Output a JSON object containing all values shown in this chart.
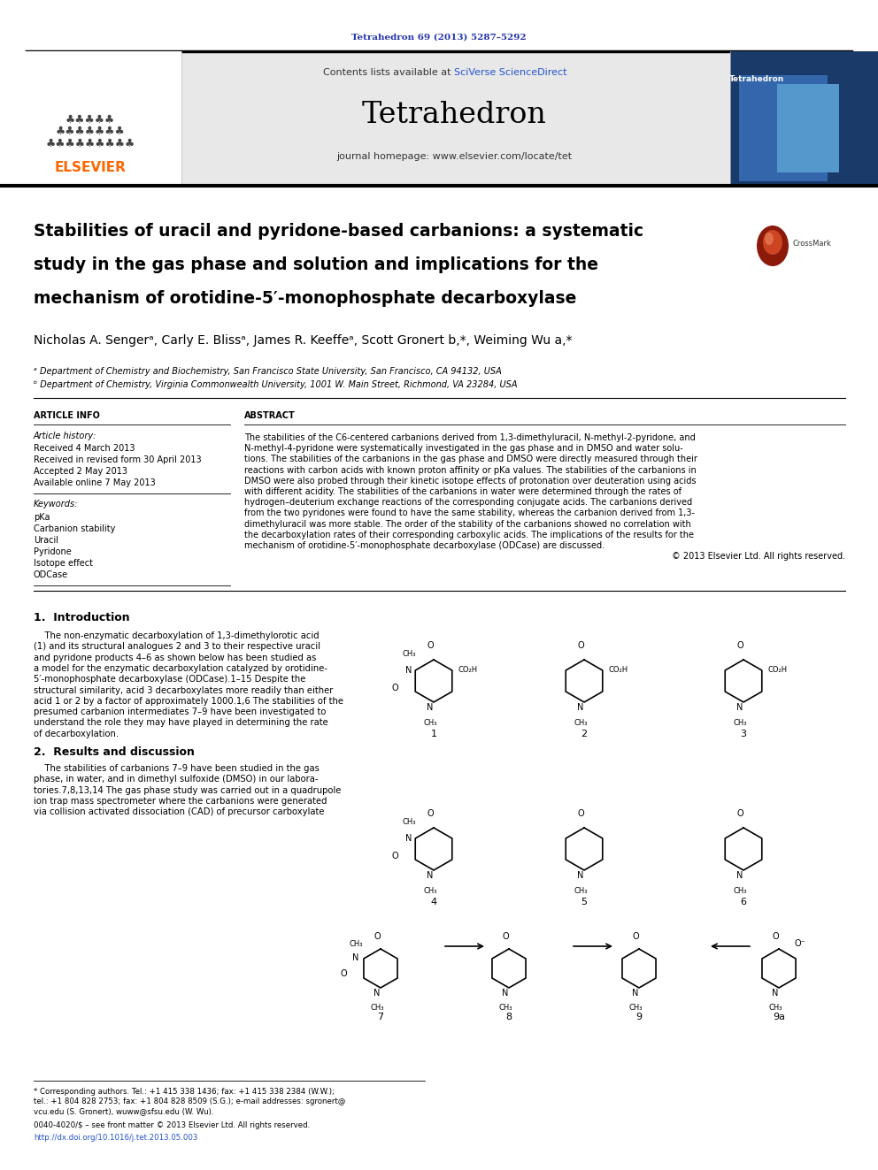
{
  "background_color": "#ffffff",
  "page_width": 9.92,
  "page_height": 13.23,
  "dpi": 100,
  "header_bg_color": "#e8e8e8",
  "journal_cite_text": "Tetrahedron 69 (2013) 5287–5292",
  "journal_cite_color": "#2233aa",
  "contents_text": "Contents lists available at ",
  "sciverse_text": "SciVerse ScienceDirect",
  "sciverse_color": "#2255cc",
  "journal_name": "Tetrahedron",
  "journal_homepage_text": "journal homepage: www.elsevier.com/locate/tet",
  "title_line1": "Stabilities of uracil and pyridone-based carbanions: a systematic",
  "title_line2": "study in the gas phase and solution and implications for the",
  "title_line3": "mechanism of orotidine-5′-monophosphate decarboxylase",
  "authors_text": "Nicholas A. Sengerᵃ, Carly E. Blissᵃ, James R. Keeffeᵃ, Scott Gronert b,*, Weiming Wu a,*",
  "affil_a": "ᵃ Department of Chemistry and Biochemistry, San Francisco State University, San Francisco, CA 94132, USA",
  "affil_b": "ᵇ Department of Chemistry, Virginia Commonwealth University, 1001 W. Main Street, Richmond, VA 23284, USA",
  "section_article_info": "ARTICLE INFO",
  "article_history_label": "Article history:",
  "received": "Received 4 March 2013",
  "revised": "Received in revised form 30 April 2013",
  "accepted": "Accepted 2 May 2013",
  "available": "Available online 7 May 2013",
  "keywords_label": "Keywords:",
  "keywords": [
    "pKa",
    "Carbanion stability",
    "Uracil",
    "Pyridone",
    "Isotope effect",
    "ODCase"
  ],
  "section_abstract": "ABSTRACT",
  "abstract_lines": [
    "The stabilities of the C6-centered carbanions derived from 1,3-dimethyluracil, N-methyl-2-pyridone, and",
    "N-methyl-4-pyridone were systematically investigated in the gas phase and in DMSO and water solu-",
    "tions. The stabilities of the carbanions in the gas phase and DMSO were directly measured through their",
    "reactions with carbon acids with known proton affinity or pKa values. The stabilities of the carbanions in",
    "DMSO were also probed through their kinetic isotope effects of protonation over deuteration using acids",
    "with different acidity. The stabilities of the carbanions in water were determined through the rates of",
    "hydrogen–deuterium exchange reactions of the corresponding conjugate acids. The carbanions derived",
    "from the two pyridones were found to have the same stability, whereas the carbanion derived from 1,3-",
    "dimethyluracil was more stable. The order of the stability of the carbanions showed no correlation with",
    "the decarboxylation rates of their corresponding carboxylic acids. The implications of the results for the",
    "mechanism of orotidine-5′-monophosphate decarboxylase (ODCase) are discussed.",
    "© 2013 Elsevier Ltd. All rights reserved."
  ],
  "section1_title": "1.  Introduction",
  "intro_lines": [
    "    The non-enzymatic decarboxylation of 1,3-dimethylorotic acid",
    "(1) and its structural analogues 2 and 3 to their respective uracil",
    "and pyridone products 4–6 as shown below has been studied as",
    "a model for the enzymatic decarboxylation catalyzed by orotidine-",
    "5′-monophosphate decarboxylase (ODCase).1–15 Despite the",
    "structural similarity, acid 3 decarboxylates more readily than either",
    "acid 1 or 2 by a factor of approximately 1000.1,6 The stabilities of the",
    "presumed carbanion intermediates 7–9 have been investigated to",
    "understand the role they may have played in determining the rate",
    "of decarboxylation."
  ],
  "section2_title": "2.  Results and discussion",
  "section2_lines": [
    "    The stabilities of carbanions 7–9 have been studied in the gas",
    "phase, in water, and in dimethyl sulfoxide (DMSO) in our labora-",
    "tories.7,8,13,14 The gas phase study was carried out in a quadrupole",
    "ion trap mass spectrometer where the carbanions were generated",
    "via collision activated dissociation (CAD) of precursor carboxylate"
  ],
  "footnote_lines": [
    "* Corresponding authors. Tel.: +1 415 338 1436; fax: +1 415 338 2384 (W.W.);",
    "tel.: +1 804 828 2753; fax: +1 804 828 8509 (S.G.); e-mail addresses: sgronert@",
    "vcu.edu (S. Gronert), wuww@sfsu.edu (W. Wu)."
  ],
  "issn_text": "0040-4020/$ – see front matter © 2013 Elsevier Ltd. All rights reserved.",
  "doi_text": "http://dx.doi.org/10.1016/j.tet.2013.05.003",
  "doi_color": "#2255cc"
}
